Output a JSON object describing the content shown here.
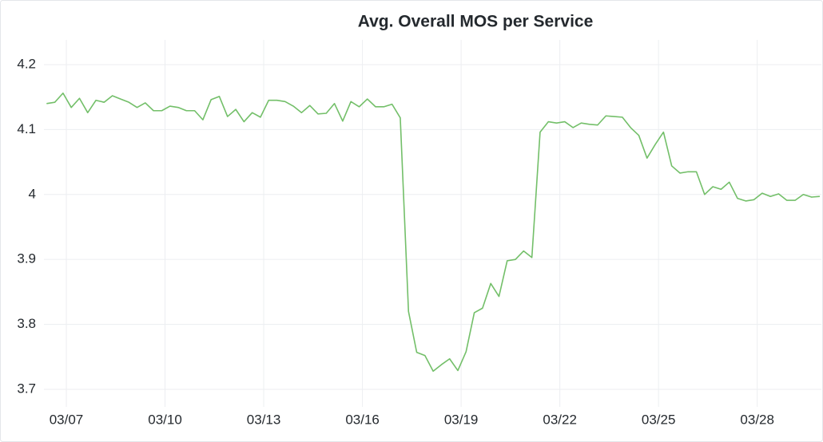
{
  "chart_data": {
    "type": "line",
    "title": "Avg. Overall MOS per Service",
    "x": [
      6.4,
      6.65,
      6.9,
      7.15,
      7.4,
      7.65,
      7.9,
      8.15,
      8.4,
      8.65,
      8.9,
      9.15,
      9.4,
      9.65,
      9.9,
      10.15,
      10.4,
      10.65,
      10.9,
      11.15,
      11.4,
      11.65,
      11.9,
      12.15,
      12.4,
      12.65,
      12.9,
      13.15,
      13.4,
      13.65,
      13.9,
      14.15,
      14.4,
      14.65,
      14.9,
      15.15,
      15.4,
      15.65,
      15.9,
      16.15,
      16.4,
      16.65,
      16.9,
      17.15,
      17.4,
      17.65,
      17.9,
      18.15,
      18.4,
      18.65,
      18.9,
      19.15,
      19.4,
      19.65,
      19.9,
      20.15,
      20.4,
      20.65,
      20.9,
      21.15,
      21.4,
      21.65,
      21.9,
      22.15,
      22.4,
      22.65,
      22.9,
      23.15,
      23.4,
      23.65,
      23.9,
      24.15,
      24.4,
      24.65,
      24.9,
      25.15,
      25.4,
      25.65,
      25.9,
      26.15,
      26.4,
      26.65,
      26.9,
      27.15,
      27.4,
      27.65,
      27.9,
      28.15,
      28.4,
      28.65,
      28.9,
      29.15,
      29.4,
      29.65,
      29.9
    ],
    "series": [
      {
        "color": "#73bf69",
        "values": [
          4.14,
          4.142,
          4.156,
          4.134,
          4.148,
          4.126,
          4.145,
          4.142,
          4.152,
          4.147,
          4.142,
          4.134,
          4.141,
          4.129,
          4.129,
          4.136,
          4.134,
          4.129,
          4.129,
          4.115,
          4.146,
          4.151,
          4.12,
          4.131,
          4.112,
          4.126,
          4.119,
          4.145,
          4.145,
          4.143,
          4.136,
          4.126,
          4.137,
          4.124,
          4.125,
          4.14,
          4.113,
          4.143,
          4.135,
          4.147,
          4.135,
          4.135,
          4.139,
          4.118,
          3.82,
          3.757,
          3.752,
          3.728,
          3.738,
          3.747,
          3.729,
          3.758,
          3.818,
          3.825,
          3.863,
          3.843,
          3.898,
          3.9,
          3.913,
          3.903,
          4.096,
          4.112,
          4.11,
          4.112,
          4.103,
          4.11,
          4.108,
          4.107,
          4.121,
          4.12,
          4.119,
          4.103,
          4.091,
          4.056,
          4.077,
          4.096,
          4.044,
          4.033,
          4.035,
          4.035,
          4.0,
          4.012,
          4.008,
          4.019,
          3.994,
          3.99,
          3.992,
          4.002,
          3.997,
          4.001,
          3.991,
          3.991,
          4.0,
          3.996,
          3.997
        ]
      }
    ],
    "xlim": [
      6.32,
      29.95
    ],
    "xticks": [
      {
        "value": 7,
        "label": "03/07"
      },
      {
        "value": 10,
        "label": "03/10"
      },
      {
        "value": 13,
        "label": "03/13"
      },
      {
        "value": 16,
        "label": "03/16"
      },
      {
        "value": 19,
        "label": "03/19"
      },
      {
        "value": 22,
        "label": "03/22"
      },
      {
        "value": 25,
        "label": "03/25"
      },
      {
        "value": 28,
        "label": "03/28"
      }
    ],
    "ylim": [
      3.673,
      4.238
    ],
    "yticks": [
      3.7,
      3.8,
      3.9,
      4,
      4.1,
      4.2
    ],
    "grid": true
  }
}
